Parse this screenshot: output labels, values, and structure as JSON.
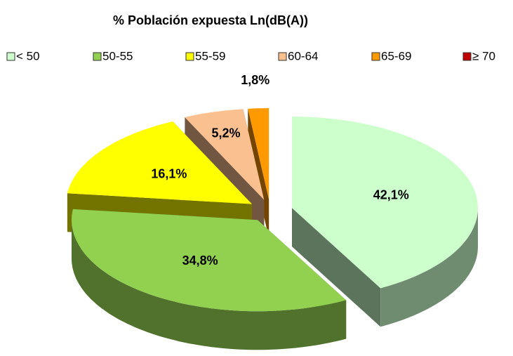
{
  "chart_data": {
    "type": "pie3d",
    "title": "% Población expuesta Ln(dB(A))",
    "categories": [
      "< 50",
      "50-55",
      "55-59",
      "60-64",
      "65-69",
      "≥ 70"
    ],
    "values": [
      42.1,
      34.8,
      16.1,
      5.2,
      1.8,
      0
    ],
    "value_labels": [
      "42,1%",
      "34,8%",
      "16,1%",
      "5,2%",
      "1,8%",
      null
    ],
    "colors": [
      "#ccffcc",
      "#92d050",
      "#ffff00",
      "#fac090",
      "#ff9900",
      "#c00000"
    ],
    "legend": "top"
  }
}
